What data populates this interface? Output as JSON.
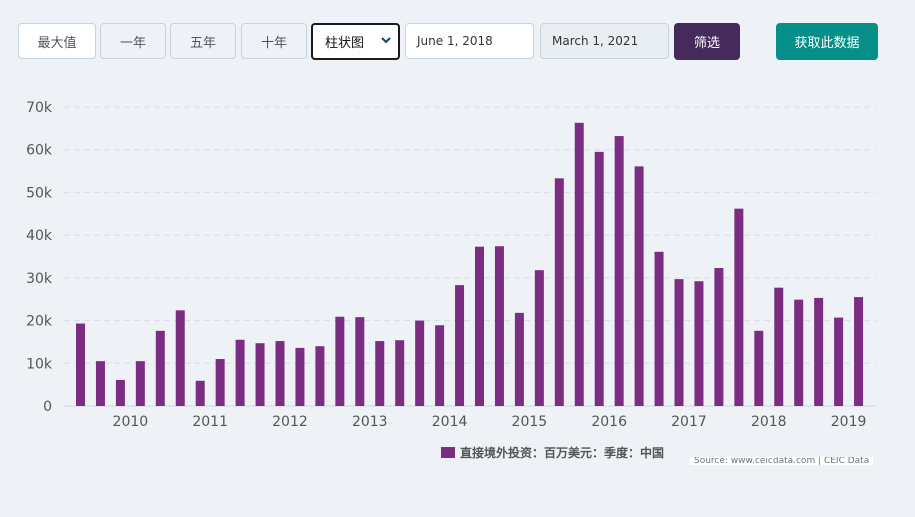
{
  "controls": {
    "ranges": [
      "最大值",
      "一年",
      "五年",
      "十年"
    ],
    "chart_type_select": "柱状图",
    "date_from": "June 1, 2018",
    "date_to": "March 1, 2021",
    "filter_label": "筛选",
    "fetch_label": "获取此数据"
  },
  "colors": {
    "bar": "#7b2d82",
    "filter_button": "#452a5c",
    "fetch_button": "#068f88",
    "grid": "#d5dde4"
  },
  "legend": {
    "label": "直接境外投资：百万美元：季度：中国"
  },
  "source": {
    "text": "Source: www.ceicdata.com | CEIC Data"
  },
  "chart_data": {
    "type": "bar",
    "grid": true,
    "legend_position": "bottom",
    "yticks": [
      "0",
      "10k",
      "20k",
      "30k",
      "40k",
      "50k",
      "60k",
      "70k"
    ],
    "ylim": [
      0,
      70000
    ],
    "xticks": [
      "2010",
      "2011",
      "2012",
      "2013",
      "2014",
      "2015",
      "2016",
      "2017",
      "2018",
      "2019"
    ],
    "categories": [
      "2009-Q4",
      "2010-Q1",
      "2010-Q2",
      "2010-Q3",
      "2010-Q4",
      "2011-Q1",
      "2011-Q2",
      "2011-Q3",
      "2011-Q4",
      "2012-Q1",
      "2012-Q2",
      "2012-Q3",
      "2012-Q4",
      "2013-Q1",
      "2013-Q2",
      "2013-Q3",
      "2013-Q4",
      "2014-Q1",
      "2014-Q2",
      "2014-Q3",
      "2014-Q4",
      "2015-Q1",
      "2015-Q2",
      "2015-Q3",
      "2015-Q4",
      "2016-Q1",
      "2016-Q2",
      "2016-Q3",
      "2016-Q4",
      "2017-Q1",
      "2017-Q2",
      "2017-Q3",
      "2017-Q4",
      "2018-Q1",
      "2018-Q2",
      "2018-Q3",
      "2018-Q4",
      "2019-Q1",
      "2019-Q2",
      "2019-Q3"
    ],
    "series": [
      {
        "name": "直接境外投资：百万美元：季度：中国",
        "values": [
          19300,
          10500,
          6100,
          10500,
          17600,
          22400,
          5900,
          11000,
          15500,
          14700,
          15200,
          13600,
          14000,
          20900,
          20800,
          15200,
          15400,
          20000,
          18900,
          28300,
          37300,
          37400,
          21800,
          31800,
          53300,
          66300,
          59500,
          63200,
          56100,
          36100,
          29700,
          29200,
          32300,
          46200,
          17600,
          27700,
          24900,
          25300,
          20700,
          25500
        ]
      }
    ]
  }
}
